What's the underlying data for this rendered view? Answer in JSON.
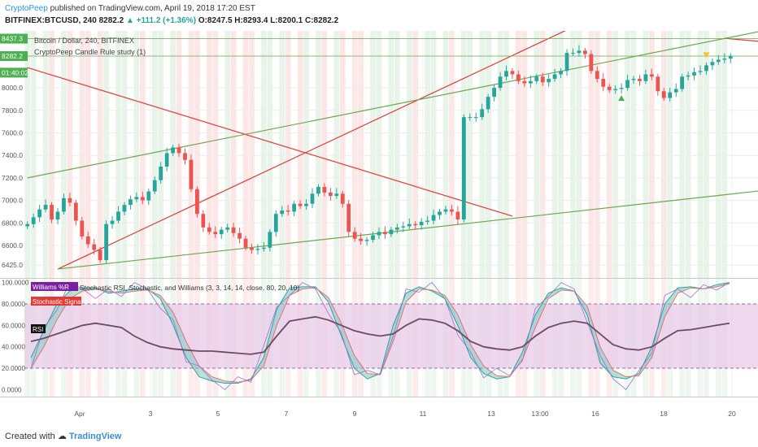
{
  "header": {
    "author": "CryptoPeep",
    "published": "published on TradingView.com, April 19, 2018 17:20 EST",
    "symbol_line": "BITFINEX:BTCUSD, 240  8282.2",
    "change": "▲ +111.2 (+1.36%)",
    "ohlc": "O:8247.5 H:8293.4 L:8200.1 C:8282.2"
  },
  "footer": {
    "created_with": "Created with",
    "brand": "TradingView"
  },
  "colors": {
    "up": "#26a69a",
    "down": "#ef5350",
    "band_green": "#e2f1e4",
    "band_red": "#fde0e0",
    "trend_red": "#e53935",
    "trend_green": "#6aa84f",
    "rsi": "#6d4c63",
    "osc_fill": "#e8cbe8"
  },
  "chart_data": [
    {
      "type": "candlestick",
      "title": "Bitcoin / Dollar, 240, BITFINEX",
      "study": "CryptoPeep Candle Rule study (1)",
      "price_tags": [
        "8437.3",
        "8282.2",
        "01:40:02"
      ],
      "y_ticks": [
        "8000.0",
        "7800.0",
        "7600.0",
        "7400.0",
        "7200.0",
        "7000.0",
        "6800.0",
        "6600.0",
        "6425.0"
      ],
      "ylim": [
        6340,
        8470
      ],
      "x_ticks": [
        "Apr",
        "3",
        "5",
        "7",
        "9",
        "11",
        "13",
        "13:00",
        "16",
        "18",
        "20"
      ],
      "closes": [
        6790,
        6850,
        6920,
        6960,
        6830,
        6900,
        7020,
        6980,
        6820,
        6680,
        6610,
        6560,
        6470,
        6790,
        6820,
        6900,
        6960,
        7010,
        7030,
        7000,
        7080,
        7180,
        7300,
        7420,
        7470,
        7420,
        7360,
        7100,
        6880,
        6760,
        6720,
        6700,
        6740,
        6760,
        6710,
        6660,
        6580,
        6560,
        6570,
        6580,
        6720,
        6880,
        6910,
        6900,
        6970,
        6950,
        6970,
        7060,
        7120,
        7070,
        7040,
        7060,
        6970,
        6720,
        6660,
        6640,
        6650,
        6690,
        6720,
        6700,
        6740,
        6760,
        6770,
        6790,
        6780,
        6810,
        6820,
        6870,
        6900,
        6920,
        6900,
        6830,
        7740,
        7740,
        7740,
        7810,
        7920,
        8000,
        8100,
        8150,
        8120,
        8060,
        8040,
        8060,
        8100,
        8050,
        8080,
        8120,
        8150,
        8310,
        8310,
        8330,
        8300,
        8150,
        8080,
        8010,
        7980,
        7990,
        8000,
        8070,
        8080,
        8060,
        8120,
        8100,
        7970,
        7910,
        7960,
        7990,
        8100,
        8110,
        8140,
        8150,
        8200,
        8230,
        8250,
        8260,
        8282.2
      ],
      "markers": [
        {
          "type": "buy",
          "index": 98
        },
        {
          "type": "sell",
          "index": 112
        }
      ],
      "trendlines": [
        {
          "color": "red",
          "from": [
            0,
            8180
          ],
          "to": [
            80,
            6860
          ]
        },
        {
          "color": "red",
          "from": [
            5,
            6390
          ],
          "to": [
            90,
            8540
          ]
        },
        {
          "color": "green",
          "from": [
            0,
            7200
          ],
          "to": [
            130,
            8600
          ]
        },
        {
          "color": "green",
          "from": [
            5,
            6390
          ],
          "to": [
            130,
            7140
          ]
        },
        {
          "color": "red",
          "from": [
            115,
            8440
          ],
          "to": [
            130,
            8370
          ]
        }
      ]
    },
    {
      "type": "line",
      "title": "Stochastic RSI, Stochastic, and Williams (3, 3, 14, 14, close, 80, 20, 10)",
      "legend": [
        "Williams %R",
        "Stochastic Signal d"
      ],
      "rsi_label": "RSI",
      "y_ticks": [
        "100.0000",
        "80.0000",
        "60.0000",
        "40.0000",
        "20.0000",
        "0.0000"
      ],
      "ylim": [
        -5,
        102
      ],
      "band": [
        20,
        80
      ],
      "series": [
        {
          "values": [
            30,
            55,
            80,
            92,
            95,
            95,
            90,
            92,
            94,
            94,
            85,
            60,
            30,
            12,
            8,
            6,
            6,
            10,
            30,
            75,
            95,
            96,
            96,
            82,
            50,
            20,
            10,
            15,
            60,
            90,
            96,
            92,
            85,
            60,
            30,
            15,
            10,
            12,
            35,
            70,
            90,
            95,
            92,
            70,
            25,
            12,
            10,
            15,
            40,
            80,
            95,
            96,
            94,
            98,
            100
          ]
        },
        {
          "values": [
            20,
            40,
            65,
            85,
            92,
            94,
            92,
            90,
            92,
            93,
            88,
            72,
            45,
            22,
            12,
            8,
            7,
            9,
            22,
            60,
            88,
            94,
            95,
            86,
            62,
            32,
            15,
            14,
            45,
            82,
            94,
            93,
            88,
            70,
            42,
            22,
            13,
            12,
            28,
            58,
            85,
            93,
            92,
            78,
            40,
            18,
            12,
            13,
            30,
            68,
            90,
            95,
            94,
            96,
            99
          ]
        },
        {
          "values": [
            45,
            48,
            52,
            56,
            60,
            62,
            60,
            58,
            50,
            44,
            40,
            38,
            37,
            36,
            36,
            35,
            34,
            33,
            35,
            50,
            64,
            66,
            68,
            65,
            60,
            55,
            52,
            50,
            52,
            60,
            66,
            65,
            62,
            55,
            45,
            40,
            38,
            37,
            40,
            50,
            58,
            62,
            64,
            62,
            52,
            42,
            38,
            37,
            40,
            48,
            55,
            56,
            58,
            60,
            62
          ]
        }
      ]
    }
  ]
}
